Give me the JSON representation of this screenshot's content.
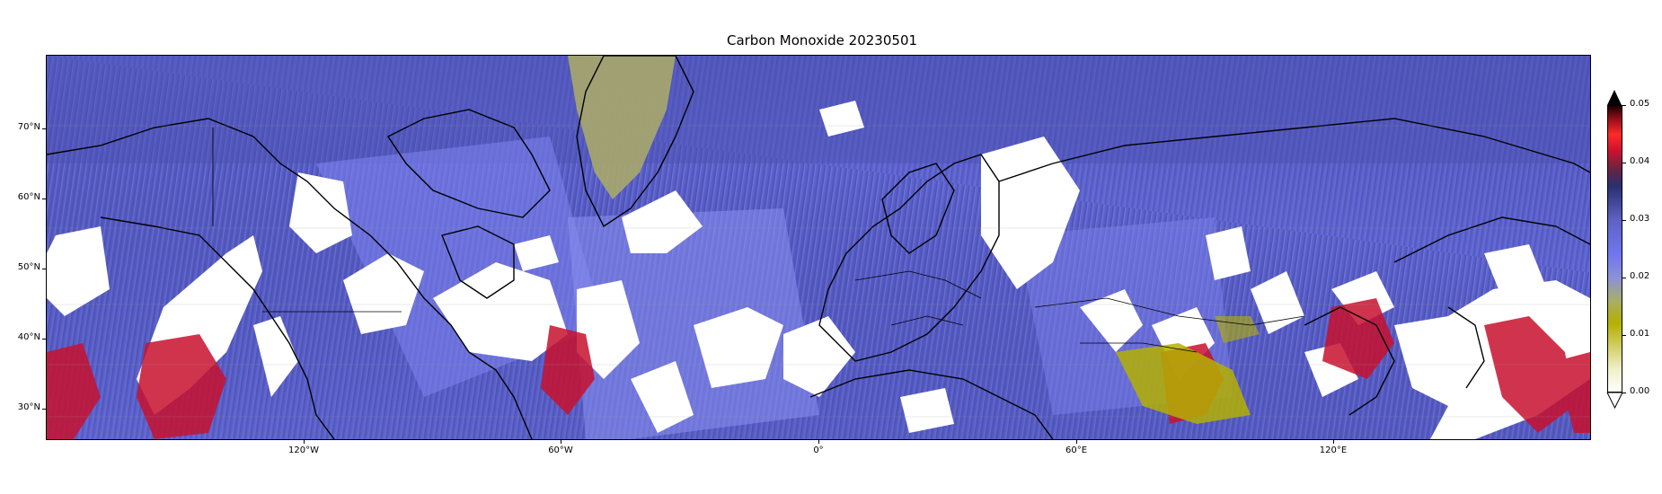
{
  "title": "Carbon Monoxide 20230501",
  "map": {
    "projection": "plate-carree",
    "lon_range": [
      -180,
      180
    ],
    "lat_range": [
      25.5,
      80.5
    ],
    "ocean_field_color": "#5a5fc2",
    "cloud_gap_color": "#ffffff",
    "high_co_color": "#c8102e",
    "low_co_color": "#b4b000",
    "coastline_color": "#000000"
  },
  "lat_ticks": [
    {
      "label": "70°N",
      "lat": 70
    },
    {
      "label": "60°N",
      "lat": 60
    },
    {
      "label": "50°N",
      "lat": 50
    },
    {
      "label": "40°N",
      "lat": 40
    },
    {
      "label": "30°N",
      "lat": 30
    }
  ],
  "lon_ticks": [
    {
      "label": "120°W",
      "lon": -120
    },
    {
      "label": "60°W",
      "lon": -60
    },
    {
      "label": "0°",
      "lon": 0
    },
    {
      "label": "60°E",
      "lon": 60
    },
    {
      "label": "120°E",
      "lon": 120
    }
  ],
  "colorbar": {
    "min": 0.0,
    "max": 0.05,
    "extend": "both",
    "ticks": [
      {
        "label": "0.05",
        "value": 0.05
      },
      {
        "label": "0.04",
        "value": 0.04
      },
      {
        "label": "0.03",
        "value": 0.03
      },
      {
        "label": "0.02",
        "value": 0.02
      },
      {
        "label": "0.01",
        "value": 0.01
      },
      {
        "label": "0.00",
        "value": 0.0
      }
    ]
  }
}
